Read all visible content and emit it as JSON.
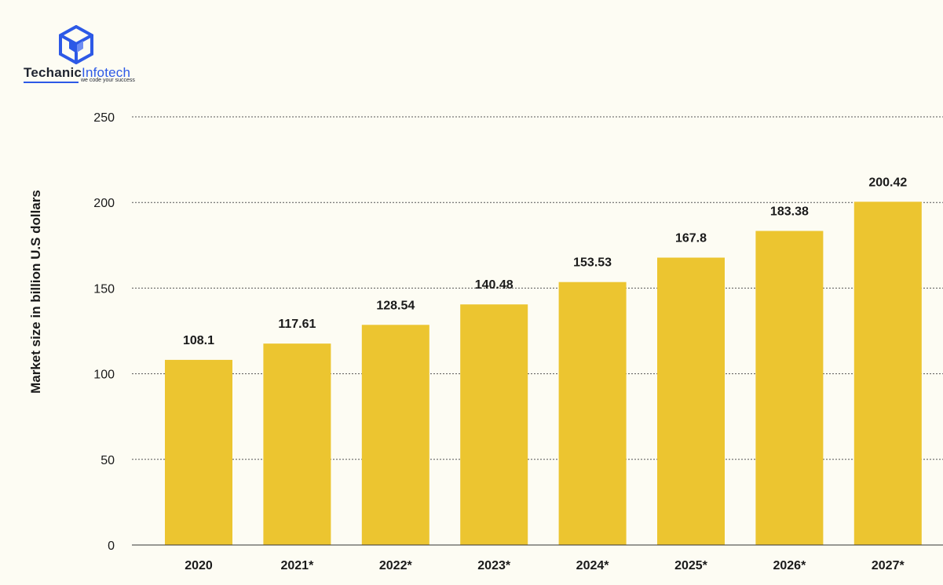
{
  "brand": {
    "name_part1": "Techanic",
    "name_part2": "Infotech",
    "tagline": "we code your success",
    "colors": {
      "primary": "#2d59e6",
      "dark": "#1f2430"
    }
  },
  "chart_data": {
    "type": "bar",
    "title": "",
    "xlabel": "",
    "ylabel": "Market size in billion U.S dollars",
    "categories": [
      "2020",
      "2021*",
      "2022*",
      "2023*",
      "2024*",
      "2025*",
      "2026*",
      "2027*"
    ],
    "values": [
      108.1,
      117.61,
      128.54,
      140.48,
      153.53,
      167.8,
      183.38,
      200.42
    ],
    "data_labels": [
      "108.1",
      "117.61",
      "128.54",
      "140.48",
      "153.53",
      "167.8",
      "183.38",
      "200.42"
    ],
    "ylim": [
      0,
      250
    ],
    "yticks": [
      "0",
      "50",
      "100",
      "150",
      "200",
      "250"
    ],
    "grid": true,
    "legend": "none",
    "bar_color": "#ecc530"
  }
}
